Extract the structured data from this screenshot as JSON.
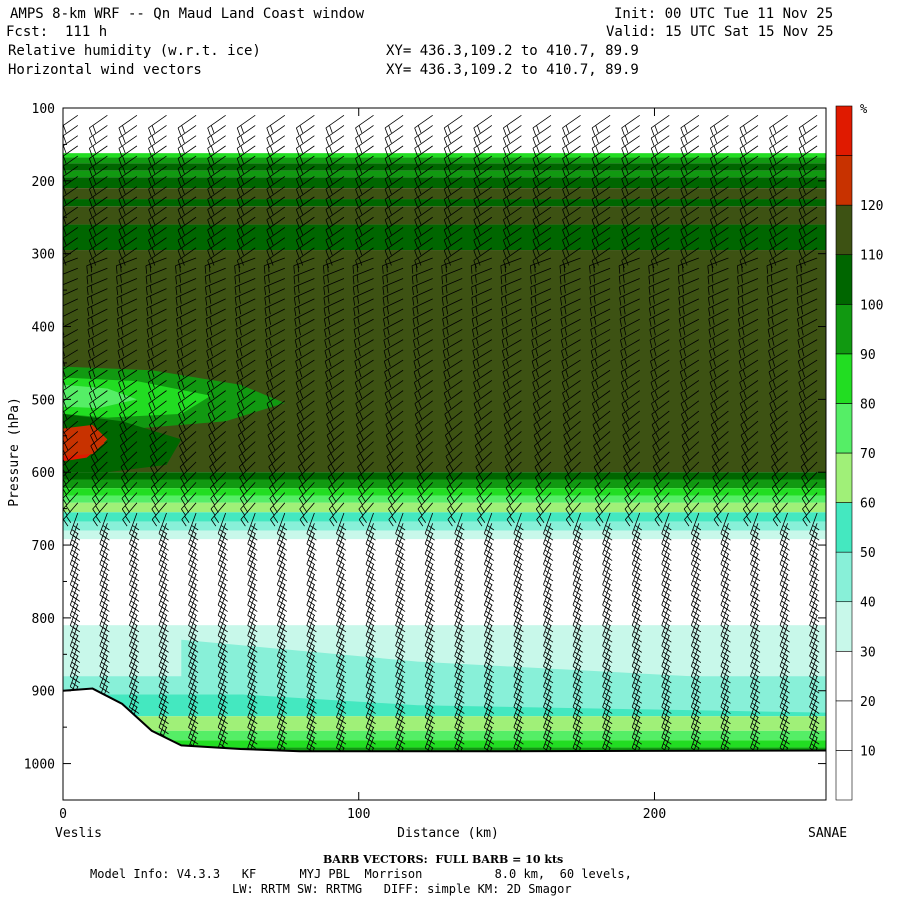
{
  "header": {
    "title": "AMPS 8-km WRF -- Qn Maud Land Coast window",
    "forecast": "Fcst:  111 h",
    "init": "Init: 00 UTC Tue 11 Nov 25",
    "valid": "Valid: 15 UTC Sat 15 Nov 25",
    "field1": "Relative humidity (w.r.t. ice)",
    "field2": "Horizontal wind vectors",
    "xy1": "XY= 436.3,109.2 to 410.7, 89.9",
    "xy2": "XY= 436.3,109.2 to 410.7, 89.9"
  },
  "footer": {
    "barb_note": "BARB VECTORS:  FULL BARB = 10 kts",
    "model_info_1": "Model Info: V4.3.3   KF      MYJ PBL  Morrison          8.0 km,  60 levels,",
    "model_info_2": "LW: RRTM SW: RRTMG   DIFF: simple KM: 2D Smagor"
  },
  "chart_data": {
    "type": "heatmap",
    "title": "Relative humidity (w.r.t. ice)",
    "xlabel": "Distance (km)",
    "ylabel": "Pressure (hPa)",
    "xlim": [
      0,
      258
    ],
    "ylim": [
      1050,
      100
    ],
    "x_ticks": [
      "0",
      "100",
      "200"
    ],
    "y_ticks": [
      "100",
      "200",
      "300",
      "400",
      "500",
      "600",
      "700",
      "800",
      "900",
      "1000"
    ],
    "x_start_label": "Veslis",
    "x_end_label": "SANAE",
    "colorbar": {
      "unit": "%",
      "levels": [
        10,
        20,
        30,
        40,
        50,
        60,
        70,
        80,
        90,
        100,
        110,
        120
      ],
      "colors": [
        "#ffffff",
        "#ffffff",
        "#ffffff",
        "#c8f8ea",
        "#88f0d8",
        "#44e8c0",
        "#a0f078",
        "#55ee66",
        "#22dd22",
        "#119911",
        "#006600",
        "#3d5213",
        "#c83200",
        "#e01a00"
      ]
    },
    "layers": [
      {
        "p_top": 100,
        "p_bottom": 165,
        "rh_range": "0-10"
      },
      {
        "p_top": 165,
        "p_bottom": 180,
        "rh_range": "80-90"
      },
      {
        "p_top": 180,
        "p_bottom": 200,
        "rh_range": "90-100"
      },
      {
        "p_top": 200,
        "p_bottom": 300,
        "rh_range": "100-110"
      },
      {
        "p_top": 300,
        "p_bottom": 600,
        "rh_range": "100-110"
      },
      {
        "p_top": 600,
        "p_bottom": 650,
        "rh_range": "80-100"
      },
      {
        "p_top": 650,
        "p_bottom": 700,
        "rh_range": "40-70"
      },
      {
        "p_top": 700,
        "p_bottom": 810,
        "rh_range": "0-30"
      },
      {
        "p_top": 810,
        "p_bottom": 900,
        "rh_range": "30-50"
      },
      {
        "p_top": 900,
        "p_bottom": 985,
        "rh_range": "50-90"
      }
    ],
    "moist_maximum": {
      "x": 5,
      "p": 570,
      "rh_range": "110-120"
    },
    "terrain": [
      {
        "x": 0,
        "p": 900
      },
      {
        "x": 10,
        "p": 897
      },
      {
        "x": 20,
        "p": 918
      },
      {
        "x": 30,
        "p": 955
      },
      {
        "x": 40,
        "p": 975
      },
      {
        "x": 60,
        "p": 980
      },
      {
        "x": 80,
        "p": 983
      },
      {
        "x": 150,
        "p": 983
      },
      {
        "x": 258,
        "p": 982
      }
    ]
  }
}
